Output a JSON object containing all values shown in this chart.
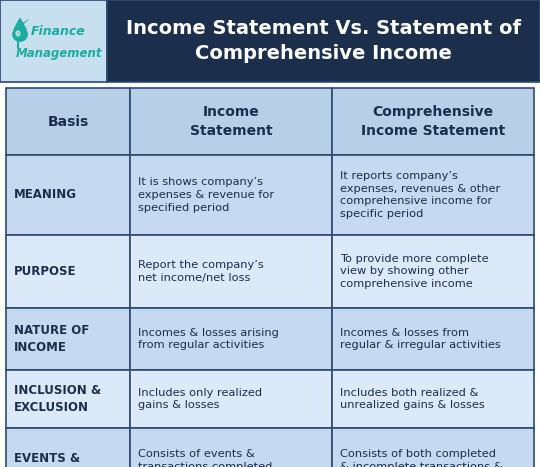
{
  "title": "Income Statement Vs. Statement of\nComprehensive Income",
  "title_bg": "#1b2e4b",
  "title_color": "#ffffff",
  "logo_bg": "#c8dff0",
  "header_bg": "#b8cfe8",
  "header_text_color": "#1b2e4b",
  "row_bg_dark": "#c5d9f0",
  "row_bg_light": "#dce9f8",
  "border_color": "#2d4a6e",
  "cell_text_color": "#1b2e4b",
  "logo_text_top": "Finance",
  "logo_text_bot": "Management",
  "logo_color": "#1aada0",
  "headers": [
    "Basis",
    "Income\nStatement",
    "Comprehensive\nIncome Statement"
  ],
  "rows": [
    {
      "basis": "MEANING",
      "col1": "It is shows company’s\nexpenses & revenue for\nspecified period",
      "col2": "It reports company’s\nexpenses, revenues & other\ncomprehensive income for\nspecific period"
    },
    {
      "basis": "PURPOSE",
      "col1": "Report the company’s\nnet income/net loss",
      "col2": "To provide more complete\nview by showing other\ncomprehensive income"
    },
    {
      "basis": "NATURE OF\nINCOME",
      "col1": "Incomes & losses arising\nfrom regular activities",
      "col2": "Incomes & losses from\nregular & irregular activities"
    },
    {
      "basis": "INCLUSION &\nEXCLUSION",
      "col1": "Includes only realized\ngains & losses",
      "col2": "Includes both realized &\nunrealized gains & losses"
    },
    {
      "basis": "EVENTS &\nTRANSACTION",
      "col1": "Consists of events &\ntransactions completed\n& took place",
      "col2": "Consists of both completed\n& incomplete transactions &\nevents"
    }
  ],
  "fig_w": 5.4,
  "fig_h": 4.67,
  "dpi": 100
}
